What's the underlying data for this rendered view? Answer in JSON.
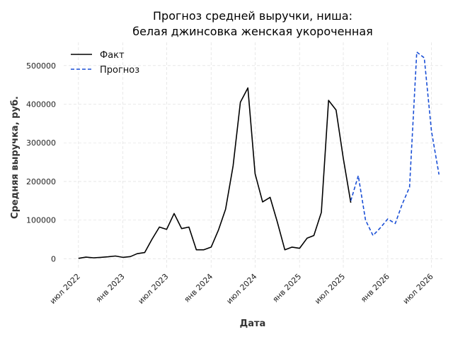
{
  "chart_data": {
    "type": "line",
    "title_line1": "Прогноз средней выручки, ниша:",
    "title_line2": "белая джинсовка женская укороченная",
    "xlabel": "Дата",
    "ylabel": "Средняя выручка, руб.",
    "x_ticks": [
      {
        "date": "2022-07-01",
        "label": "июл 2022"
      },
      {
        "date": "2023-01-01",
        "label": "янв 2023"
      },
      {
        "date": "2023-07-01",
        "label": "июл 2023"
      },
      {
        "date": "2024-01-01",
        "label": "янв 2024"
      },
      {
        "date": "2024-07-01",
        "label": "июл 2024"
      },
      {
        "date": "2025-01-01",
        "label": "янв 2025"
      },
      {
        "date": "2025-07-01",
        "label": "июл 2025"
      },
      {
        "date": "2026-01-01",
        "label": "янв 2026"
      },
      {
        "date": "2026-07-01",
        "label": "июл 2026"
      }
    ],
    "y_ticks": [
      {
        "value": 0,
        "label": "0"
      },
      {
        "value": 100000,
        "label": "100000"
      },
      {
        "value": 200000,
        "label": "200000"
      },
      {
        "value": 300000,
        "label": "300000"
      },
      {
        "value": 400000,
        "label": "400000"
      },
      {
        "value": 500000,
        "label": "500000"
      }
    ],
    "xlim": [
      "2022-05-01",
      "2026-08-15"
    ],
    "ylim": [
      -25000,
      560000
    ],
    "grid": true,
    "legend_position": "top-left",
    "series": [
      {
        "name": "Факт",
        "color": "#000000",
        "style": "solid",
        "points": [
          {
            "x": "2022-07-01",
            "y": 1000
          },
          {
            "x": "2022-08-01",
            "y": 4000
          },
          {
            "x": "2022-09-01",
            "y": 2500
          },
          {
            "x": "2022-10-01",
            "y": 3500
          },
          {
            "x": "2022-11-01",
            "y": 5000
          },
          {
            "x": "2022-12-01",
            "y": 7000
          },
          {
            "x": "2023-01-01",
            "y": 3500
          },
          {
            "x": "2023-02-01",
            "y": 5500
          },
          {
            "x": "2023-03-01",
            "y": 13000
          },
          {
            "x": "2023-04-01",
            "y": 16000
          },
          {
            "x": "2023-05-01",
            "y": 50000
          },
          {
            "x": "2023-06-01",
            "y": 82000
          },
          {
            "x": "2023-07-01",
            "y": 76000
          },
          {
            "x": "2023-08-01",
            "y": 117000
          },
          {
            "x": "2023-09-01",
            "y": 78000
          },
          {
            "x": "2023-10-01",
            "y": 82000
          },
          {
            "x": "2023-11-01",
            "y": 23000
          },
          {
            "x": "2023-12-01",
            "y": 23000
          },
          {
            "x": "2024-01-01",
            "y": 30000
          },
          {
            "x": "2024-02-01",
            "y": 75000
          },
          {
            "x": "2024-03-01",
            "y": 128000
          },
          {
            "x": "2024-04-01",
            "y": 240000
          },
          {
            "x": "2024-05-01",
            "y": 405000
          },
          {
            "x": "2024-06-01",
            "y": 442000
          },
          {
            "x": "2024-07-01",
            "y": 220000
          },
          {
            "x": "2024-08-01",
            "y": 147000
          },
          {
            "x": "2024-09-01",
            "y": 159000
          },
          {
            "x": "2024-10-01",
            "y": 95000
          },
          {
            "x": "2024-11-01",
            "y": 23000
          },
          {
            "x": "2024-12-01",
            "y": 30000
          },
          {
            "x": "2025-01-01",
            "y": 27000
          },
          {
            "x": "2025-02-01",
            "y": 53000
          },
          {
            "x": "2025-03-01",
            "y": 60000
          },
          {
            "x": "2025-04-01",
            "y": 120000
          },
          {
            "x": "2025-05-01",
            "y": 410000
          },
          {
            "x": "2025-06-01",
            "y": 385000
          },
          {
            "x": "2025-07-01",
            "y": 260000
          },
          {
            "x": "2025-08-01",
            "y": 145000
          }
        ]
      },
      {
        "name": "Прогноз",
        "color": "#1a4fd6",
        "style": "dashed",
        "points": [
          {
            "x": "2025-08-01",
            "y": 150000
          },
          {
            "x": "2025-09-01",
            "y": 215000
          },
          {
            "x": "2025-10-01",
            "y": 100000
          },
          {
            "x": "2025-11-01",
            "y": 60000
          },
          {
            "x": "2025-12-01",
            "y": 80000
          },
          {
            "x": "2026-01-01",
            "y": 103000
          },
          {
            "x": "2026-02-01",
            "y": 91000
          },
          {
            "x": "2026-03-01",
            "y": 140000
          },
          {
            "x": "2026-04-01",
            "y": 185000
          },
          {
            "x": "2026-05-01",
            "y": 535000
          },
          {
            "x": "2026-06-01",
            "y": 520000
          },
          {
            "x": "2026-07-01",
            "y": 330000
          },
          {
            "x": "2026-08-01",
            "y": 218000
          }
        ]
      }
    ]
  }
}
